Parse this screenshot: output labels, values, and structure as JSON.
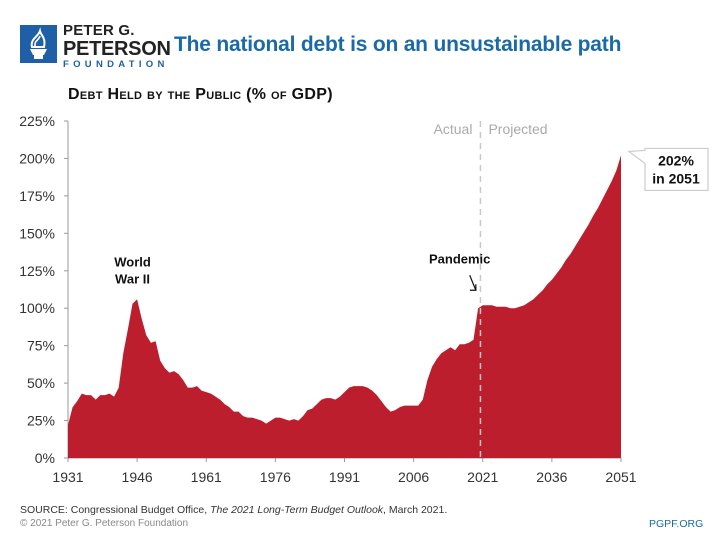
{
  "header": {
    "org_line1": "PETER G.",
    "org_line2": "PETERSON",
    "org_line3": "FOUNDATION",
    "logo_icon": "torch-icon",
    "title": "The national debt is on an unsustainable path"
  },
  "footer": {
    "source_prefix": "SOURCE: Congressional Budget Office, ",
    "source_italic": "The 2021 Long-Term Budget Outlook",
    "source_suffix": ", March 2021.",
    "copyright": "© 2021 Peter G. Peterson Foundation",
    "site": "PGPF.ORG"
  },
  "colors": {
    "area": "#bd1e2d",
    "title": "#1a6aa8",
    "brand": "#1f5fa8"
  },
  "chart_data": {
    "type": "area",
    "title": "Debt Held by the Public (% of GDP)",
    "xlabel": "",
    "ylabel": "",
    "xlim": [
      1931,
      2051
    ],
    "ylim": [
      0,
      225
    ],
    "x_ticks": [
      1931,
      1946,
      1961,
      1976,
      1991,
      2006,
      2021,
      2036,
      2051
    ],
    "y_ticks": [
      0,
      25,
      50,
      75,
      100,
      125,
      150,
      175,
      200,
      225
    ],
    "y_tick_labels": [
      "0%",
      "25%",
      "50%",
      "75%",
      "100%",
      "125%",
      "150%",
      "175%",
      "200%",
      "225%"
    ],
    "grid": false,
    "divider_year": 2020.5,
    "phase_labels": {
      "left": "Actual",
      "right": "Projected"
    },
    "annotations": [
      {
        "text": [
          "World",
          "War II"
        ],
        "x": 1945,
        "y": 128
      },
      {
        "text": [
          "Pandemic"
        ],
        "x": 2016,
        "y": 130,
        "arrow_to": [
          2019.5,
          112
        ]
      },
      {
        "text": [
          "202%",
          "in 2051"
        ],
        "x": 2051,
        "y": 202,
        "callout": true
      }
    ],
    "series": [
      {
        "name": "Debt held by the public",
        "x": [
          1931,
          1932,
          1933,
          1934,
          1935,
          1936,
          1937,
          1938,
          1939,
          1940,
          1941,
          1942,
          1943,
          1944,
          1945,
          1946,
          1947,
          1948,
          1949,
          1950,
          1951,
          1952,
          1953,
          1954,
          1955,
          1956,
          1957,
          1958,
          1959,
          1960,
          1961,
          1962,
          1963,
          1964,
          1965,
          1966,
          1967,
          1968,
          1969,
          1970,
          1971,
          1972,
          1973,
          1974,
          1975,
          1976,
          1977,
          1978,
          1979,
          1980,
          1981,
          1982,
          1983,
          1984,
          1985,
          1986,
          1987,
          1988,
          1989,
          1990,
          1991,
          1992,
          1993,
          1994,
          1995,
          1996,
          1997,
          1998,
          1999,
          2000,
          2001,
          2002,
          2003,
          2004,
          2005,
          2006,
          2007,
          2008,
          2009,
          2010,
          2011,
          2012,
          2013,
          2014,
          2015,
          2016,
          2017,
          2018,
          2019,
          2020,
          2021,
          2022,
          2023,
          2024,
          2025,
          2026,
          2027,
          2028,
          2029,
          2030,
          2031,
          2032,
          2033,
          2034,
          2035,
          2036,
          2037,
          2038,
          2039,
          2040,
          2041,
          2042,
          2043,
          2044,
          2045,
          2046,
          2047,
          2048,
          2049,
          2050,
          2051
        ],
        "values": [
          22,
          34,
          38,
          43,
          42,
          42,
          39,
          42,
          42,
          43,
          41,
          47,
          70,
          86,
          103,
          106,
          93,
          82,
          77,
          78,
          65,
          60,
          57,
          58,
          56,
          52,
          47,
          47,
          48,
          45,
          44,
          43,
          41,
          39,
          36,
          34,
          31,
          31,
          28,
          27,
          27,
          26,
          25,
          23,
          25,
          27,
          27,
          26,
          25,
          26,
          25,
          28,
          32,
          33,
          36,
          39,
          40,
          40,
          39,
          41,
          44,
          47,
          48,
          48,
          48,
          47,
          45,
          42,
          38,
          34,
          31,
          32,
          34,
          35,
          35,
          35,
          35,
          39,
          52,
          61,
          66,
          70,
          72,
          74,
          72,
          76,
          76,
          77,
          79,
          100,
          102,
          102,
          102,
          101,
          101,
          101,
          100,
          100,
          101,
          102,
          104,
          106,
          109,
          112,
          116,
          119,
          123,
          127,
          132,
          136,
          141,
          146,
          151,
          156,
          162,
          167,
          173,
          179,
          185,
          192,
          202
        ]
      }
    ]
  }
}
